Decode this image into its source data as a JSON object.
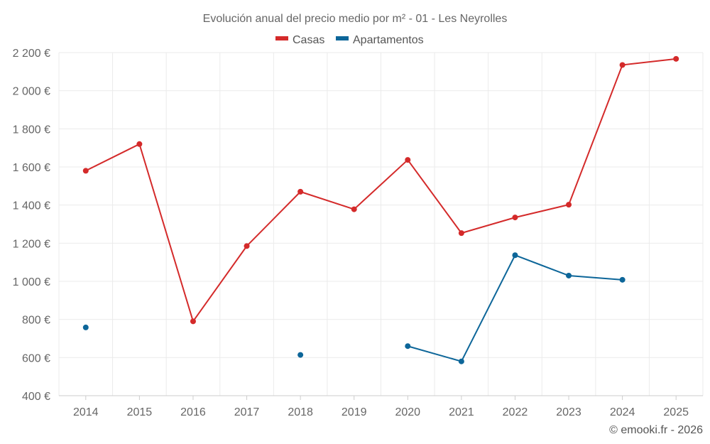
{
  "chart_data": {
    "type": "line",
    "title": "Evolución anual del precio medio por m² - 01 - Les Neyrolles",
    "categories": [
      "2014",
      "2015",
      "2016",
      "2017",
      "2018",
      "2019",
      "2020",
      "2021",
      "2022",
      "2023",
      "2024",
      "2025"
    ],
    "series": [
      {
        "name": "Casas",
        "color": "#d42a2a",
        "values": [
          1580,
          1720,
          790,
          1185,
          1470,
          1378,
          1637,
          1253,
          1335,
          1402,
          2135,
          2167
        ]
      },
      {
        "name": "Apartamentos",
        "color": "#0d6699",
        "values": [
          758,
          null,
          null,
          null,
          614,
          null,
          660,
          580,
          1137,
          1030,
          1008,
          null
        ]
      }
    ],
    "ylim": [
      400,
      2200
    ],
    "yticks": [
      400,
      600,
      800,
      1000,
      1200,
      1400,
      1600,
      1800,
      2000,
      2200
    ],
    "ytick_labels": [
      "400 €",
      "600 €",
      "800 €",
      "1 000 €",
      "1 200 €",
      "1 400 €",
      "1 600 €",
      "1 800 €",
      "2 000 €",
      "2 200 €"
    ],
    "xlabel": "",
    "ylabel": "",
    "legend_position": "top-center",
    "grid": true
  },
  "credit": "© emooki.fr - 2026"
}
